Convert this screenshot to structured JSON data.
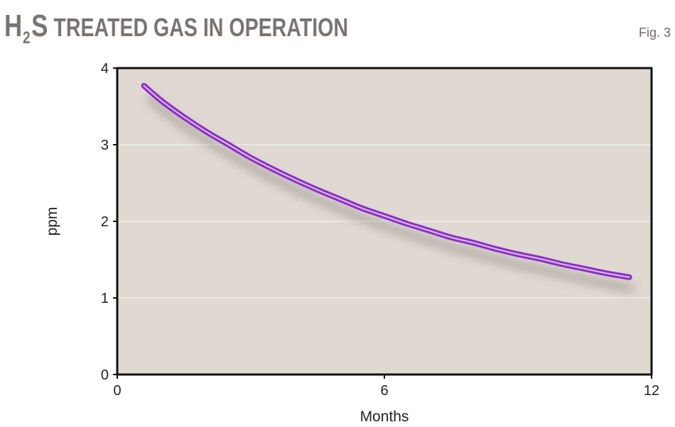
{
  "title": {
    "h": "H",
    "sub": "2",
    "s": "S",
    "rest": "TREATED GAS IN OPERATION"
  },
  "figure_label": "Fig. 3",
  "chart_data": {
    "type": "line",
    "xlabel": "Months",
    "ylabel": "ppm",
    "xlim": [
      0,
      12
    ],
    "ylim": [
      0,
      4
    ],
    "x_ticks": [
      "0",
      "6",
      "12"
    ],
    "y_ticks": [
      "0",
      "1",
      "2",
      "3",
      "4"
    ],
    "grid": true,
    "series": [
      {
        "color": "#8a2ec8",
        "x": [
          0.6,
          1.0,
          1.5,
          2.0,
          2.5,
          3.0,
          3.5,
          4.0,
          4.5,
          5.0,
          5.5,
          6.0,
          6.5,
          7.0,
          7.5,
          8.0,
          8.5,
          9.0,
          9.5,
          10.0,
          10.5,
          11.0,
          11.5
        ],
        "y": [
          3.77,
          3.57,
          3.36,
          3.17,
          3.0,
          2.83,
          2.68,
          2.54,
          2.41,
          2.29,
          2.17,
          2.07,
          1.97,
          1.88,
          1.79,
          1.72,
          1.64,
          1.57,
          1.51,
          1.44,
          1.38,
          1.32,
          1.27
        ]
      }
    ]
  }
}
